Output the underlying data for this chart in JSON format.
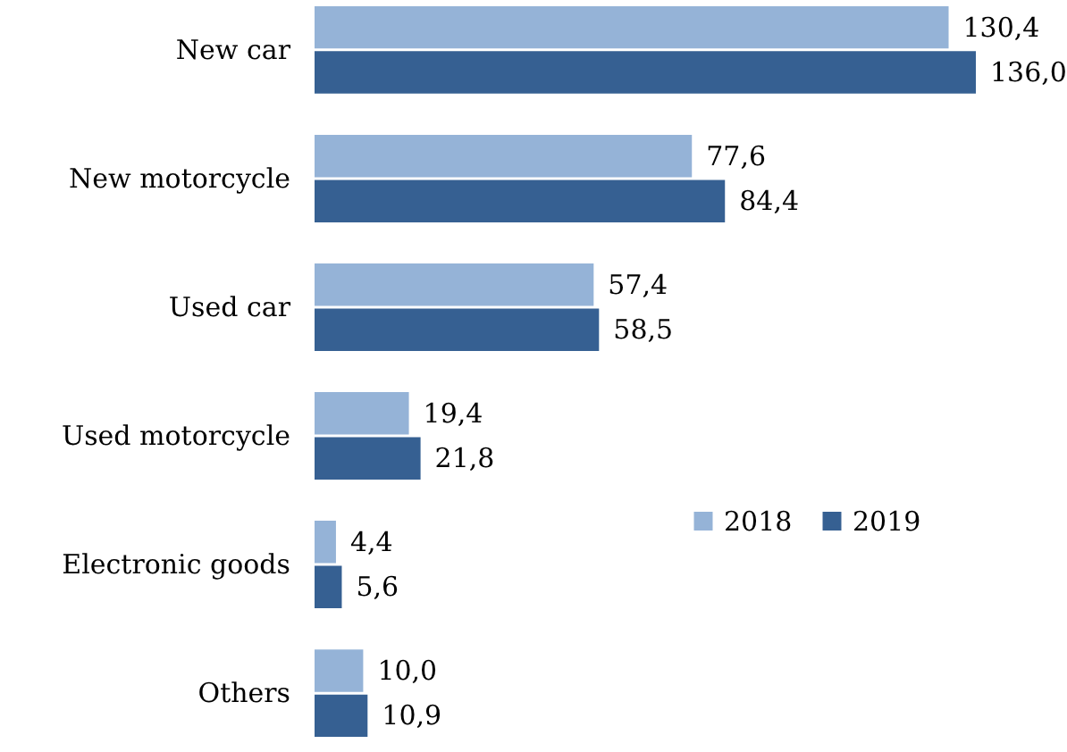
{
  "chart_data": {
    "type": "bar",
    "orientation": "horizontal",
    "categories": [
      "New car",
      "New motorcycle",
      "Used car",
      "Used motorcycle",
      "Electronic goods",
      "Others"
    ],
    "series": [
      {
        "name": "2018",
        "color": "#95b3d7",
        "values": [
          130.4,
          77.6,
          57.4,
          19.4,
          4.4,
          10.0
        ],
        "value_labels": [
          "130,4",
          "77,6",
          "57,4",
          "19,4",
          "4,4",
          "10,0"
        ]
      },
      {
        "name": "2019",
        "color": "#366092",
        "values": [
          136.0,
          84.4,
          58.5,
          21.8,
          5.6,
          10.9
        ],
        "value_labels": [
          "136,0",
          "84,4",
          "58,5",
          "21,8",
          "5,6",
          "10,9"
        ]
      }
    ],
    "legend": "right",
    "grid": false
  }
}
